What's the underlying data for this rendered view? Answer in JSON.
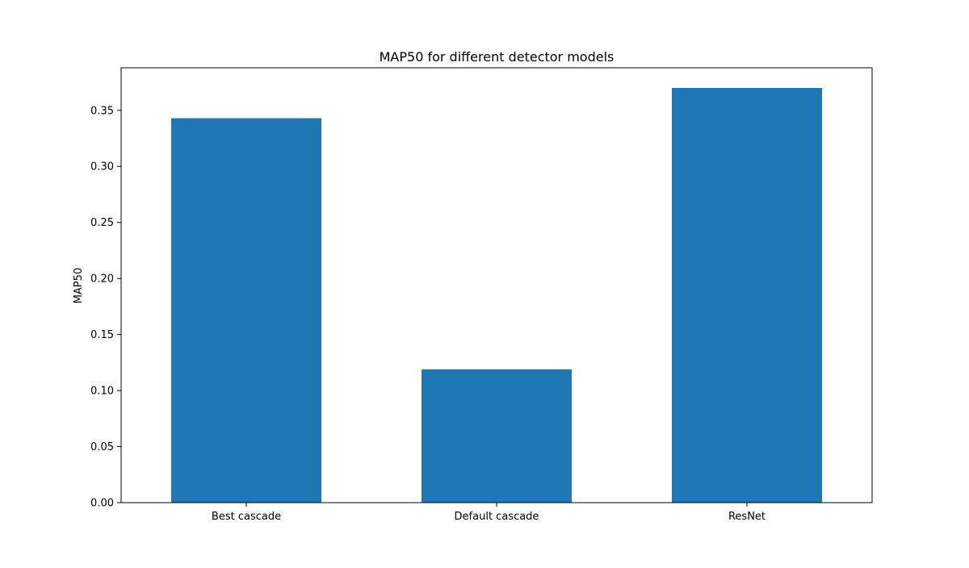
{
  "chart_data": {
    "type": "bar",
    "title": "MAP50 for different detector models",
    "xlabel": "",
    "ylabel": "MAP50",
    "categories": [
      "Best cascade",
      "Default cascade",
      "ResNet"
    ],
    "values": [
      0.343,
      0.119,
      0.37
    ],
    "ylim": [
      0,
      0.388
    ],
    "yticks": [
      "0.00",
      "0.05",
      "0.10",
      "0.15",
      "0.20",
      "0.25",
      "0.30",
      "0.35"
    ],
    "bar_color": "#1f77b4",
    "grid": false,
    "legend": "none"
  }
}
